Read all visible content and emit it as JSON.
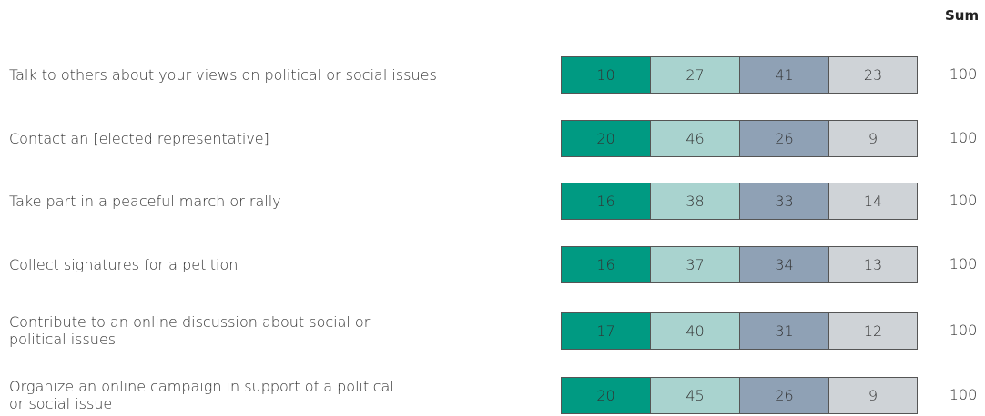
{
  "chart_data": {
    "type": "bar",
    "orientation": "horizontal",
    "stacked": true,
    "sum_header": "Sum",
    "categories": [
      "Talk to others about your views on political or social issues",
      "Contact an [elected representative]",
      "Take part in a peaceful march or rally",
      "Collect signatures for a petition",
      "Contribute to an online discussion about social or\npolitical issues",
      "Organize an online campaign in support of a political\nor social issue"
    ],
    "series": [
      {
        "color": "#009a82",
        "values": [
          10,
          20,
          16,
          16,
          17,
          20
        ]
      },
      {
        "color": "#a9d3cf",
        "values": [
          27,
          46,
          38,
          37,
          40,
          45
        ]
      },
      {
        "color": "#8fa1b5",
        "values": [
          41,
          26,
          33,
          34,
          31,
          26
        ]
      },
      {
        "color": "#cfd3d7",
        "values": [
          23,
          9,
          14,
          13,
          12,
          9
        ]
      }
    ],
    "sums": [
      "100",
      "100",
      "100",
      "100",
      "100",
      "100"
    ],
    "grid": false,
    "legend": "none"
  }
}
